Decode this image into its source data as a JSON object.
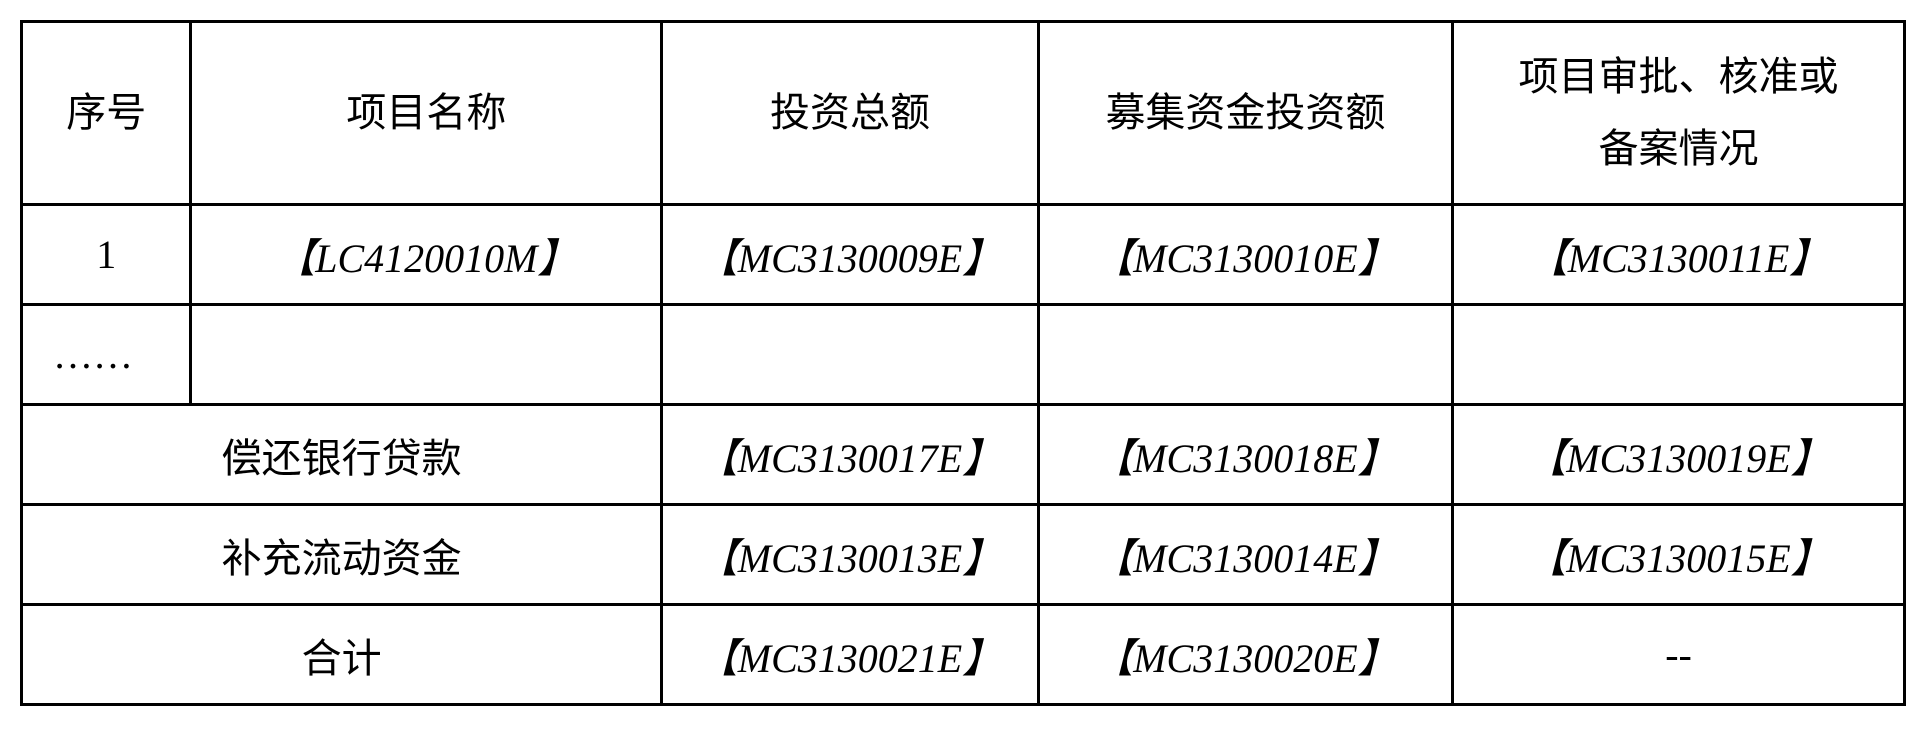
{
  "table": {
    "headers": {
      "seq": "序号",
      "name": "项目名称",
      "total": "投资总额",
      "raised": "募集资金投资额",
      "approval": "项目审批、核准或\n备案情况"
    },
    "rows": [
      {
        "seq": "1",
        "name": "【LC4120010M】",
        "total": "【MC3130009E】",
        "raised": "【MC3130010E】",
        "approval": "【MC3130011E】"
      },
      {
        "seq": "……",
        "name": "",
        "total": "",
        "raised": "",
        "approval": ""
      }
    ],
    "mergedRows": [
      {
        "label": "偿还银行贷款",
        "total": "【MC3130017E】",
        "raised": "【MC3130018E】",
        "approval": "【MC3130019E】"
      },
      {
        "label": "补充流动资金",
        "total": "【MC3130013E】",
        "raised": "【MC3130014E】",
        "approval": "【MC3130015E】"
      },
      {
        "label": "合计",
        "total": "【MC3130021E】",
        "raised": "【MC3130020E】",
        "approval": "--"
      }
    ],
    "styling": {
      "border_color": "#000000",
      "border_width": 3,
      "background_color": "#ffffff",
      "text_color": "#000000",
      "font_size": 40,
      "header_row_height": 160,
      "data_row_height": 100,
      "column_widths_pct": [
        9,
        25,
        20,
        22,
        24
      ]
    }
  }
}
